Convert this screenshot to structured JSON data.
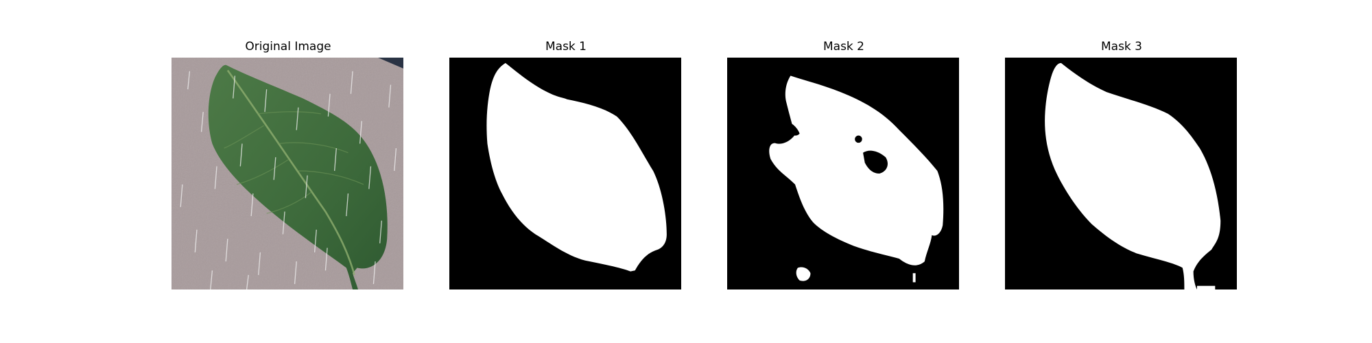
{
  "figure": {
    "panels": [
      {
        "title": "Original Image"
      },
      {
        "title": "Mask 1"
      },
      {
        "title": "Mask 2"
      },
      {
        "title": "Mask 3"
      }
    ]
  },
  "colors": {
    "background": "#ffffff",
    "mask_background": "#000000",
    "mask_foreground": "#ffffff",
    "leaf": "#3f6a3d",
    "surface": "#a89b9c"
  }
}
